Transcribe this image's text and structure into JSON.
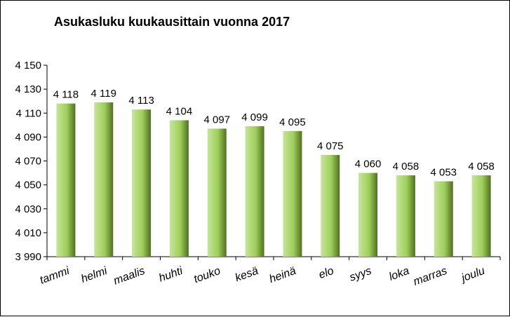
{
  "chart_data": {
    "type": "bar",
    "title": "Asukasluku kuukausittain vuonna 2017",
    "categories": [
      "tammi",
      "helmi",
      "maalis",
      "huhti",
      "touko",
      "kesä",
      "heinä",
      "elo",
      "syys",
      "loka",
      "marras",
      "joulu"
    ],
    "values": [
      4118,
      4119,
      4113,
      4104,
      4097,
      4099,
      4095,
      4075,
      4060,
      4058,
      4053,
      4058
    ],
    "value_labels": [
      "4 118",
      "4 119",
      "4 113",
      "4 104",
      "4 097",
      "4 099",
      "4 095",
      "4 075",
      "4 060",
      "4 058",
      "4 053",
      "4 058"
    ],
    "ylim": [
      3990,
      4150
    ],
    "yticks": [
      3990,
      4010,
      4030,
      4050,
      4070,
      4090,
      4110,
      4130,
      4150
    ],
    "ytick_labels": [
      "3 990",
      "4 010",
      "4 030",
      "4 050",
      "4 070",
      "4 090",
      "4 110",
      "4 130",
      "4 150"
    ],
    "xlabel": "",
    "ylabel": "",
    "grid": false,
    "legend": "none",
    "colors": {
      "bar_light": "#c6e59a",
      "bar_mid": "#9fcf5a",
      "bar_dark": "#4f7020",
      "axis": "#000000"
    }
  }
}
